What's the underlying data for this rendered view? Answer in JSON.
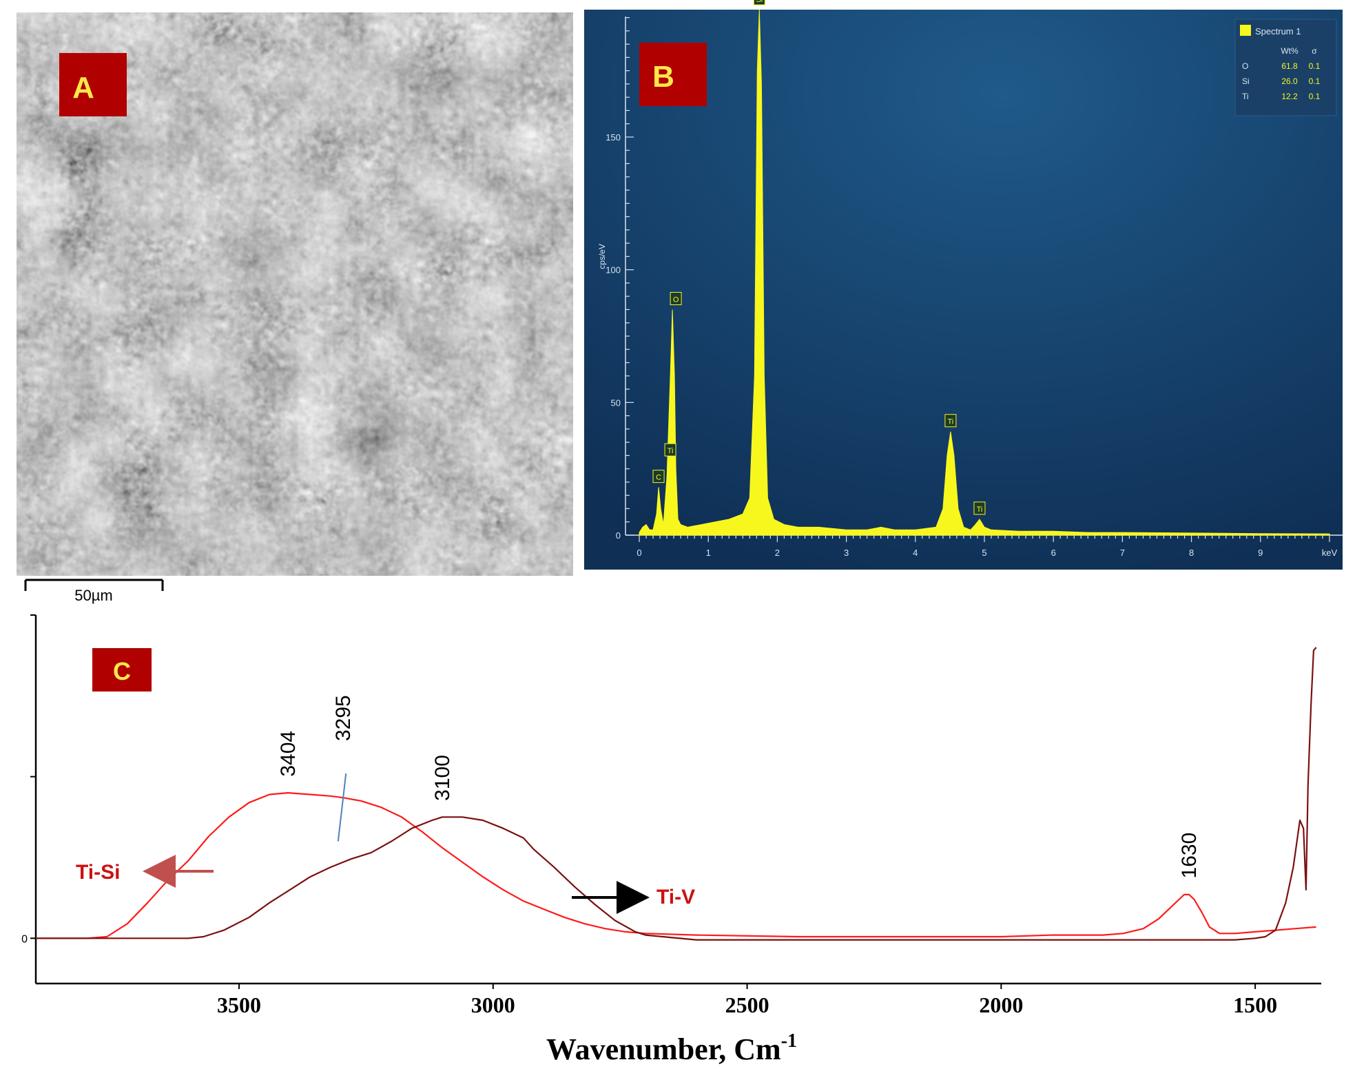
{
  "panel_a": {
    "label": "A",
    "scale_bar_label": "50µm"
  },
  "panel_b": {
    "label": "B",
    "colors": {
      "background": "#123a63",
      "spectrum": "#f7f71e",
      "label_box": "#b00000",
      "label_text": "#ffe84a"
    },
    "chart_data": {
      "type": "area",
      "title": "",
      "xlabel": "keV",
      "ylabel": "cps/eV",
      "xlim": [
        -0.05,
        10.2
      ],
      "ylim": [
        0,
        198
      ],
      "x_ticks": [
        0,
        1,
        2,
        3,
        4,
        5,
        6,
        7,
        8,
        9
      ],
      "x_tick_labels": [
        "0",
        "1",
        "2",
        "3",
        "4",
        "5",
        "6",
        "7",
        "8",
        "9"
      ],
      "y_ticks": [
        0,
        50,
        100,
        150
      ],
      "y_tick_labels": [
        "0",
        "50",
        "100",
        "150"
      ],
      "series": [
        {
          "name": "Spectrum 1",
          "x": [
            0.0,
            0.05,
            0.1,
            0.15,
            0.2,
            0.25,
            0.28,
            0.31,
            0.35,
            0.4,
            0.45,
            0.48,
            0.51,
            0.53,
            0.56,
            0.6,
            0.7,
            0.9,
            1.1,
            1.3,
            1.5,
            1.6,
            1.67,
            1.71,
            1.74,
            1.77,
            1.81,
            1.86,
            1.95,
            2.1,
            2.3,
            2.6,
            3.0,
            3.3,
            3.5,
            3.7,
            4.0,
            4.3,
            4.4,
            4.46,
            4.51,
            4.56,
            4.62,
            4.7,
            4.8,
            4.87,
            4.93,
            5.0,
            5.1,
            5.5,
            6.0,
            6.5,
            7.0,
            8.0,
            9.0,
            10.0
          ],
          "y": [
            1,
            3,
            4,
            2,
            2,
            8,
            18,
            10,
            4,
            22,
            60,
            85,
            60,
            25,
            6,
            4,
            3,
            4,
            5,
            6,
            8,
            14,
            60,
            175,
            198,
            170,
            60,
            14,
            6,
            4,
            3,
            3,
            2,
            2,
            3,
            2,
            2,
            3,
            10,
            30,
            39,
            30,
            10,
            3,
            2,
            4,
            6,
            3,
            2,
            1.5,
            1.5,
            1,
            1,
            0.8,
            0.6,
            0.5
          ]
        }
      ],
      "peak_labels": [
        {
          "text": "C",
          "x": 0.28,
          "y": 18
        },
        {
          "text": "Ti",
          "x": 0.45,
          "y": 28
        },
        {
          "text": "O",
          "x": 0.53,
          "y": 85
        },
        {
          "text": "Si",
          "x": 1.74,
          "y": 198
        },
        {
          "text": "Ti",
          "x": 4.51,
          "y": 39
        },
        {
          "text": "Ti",
          "x": 4.93,
          "y": 6
        }
      ],
      "legend": {
        "position": "top-right",
        "title": "Spectrum 1",
        "headers": [
          "Wt%",
          "σ"
        ],
        "rows": [
          {
            "element": "O",
            "wt": "61.8",
            "sigma": "0.1"
          },
          {
            "element": "Si",
            "wt": "26.0",
            "sigma": "0.1"
          },
          {
            "element": "Ti",
            "wt": "12.2",
            "sigma": "0.1"
          }
        ]
      }
    }
  },
  "panel_c": {
    "label": "C",
    "colors": {
      "ti_si": "#ff1a1a",
      "ti_v": "#7a1010",
      "label_text": "#cc1111",
      "arrow_ti_si": "#c0504d",
      "arrow_ti_v": "#000000",
      "label_box": "#b00000",
      "label_letter": "#ffe84a"
    },
    "chart_data": {
      "type": "line",
      "title": "",
      "xlabel": "Wavenumber, Cm",
      "xlabel_superscript": "-1",
      "ylabel": "",
      "xlim": [
        3900,
        1370
      ],
      "ylim": [
        -0.28,
        2.0
      ],
      "x_ticks": [
        3500,
        3000,
        2500,
        2000,
        1500
      ],
      "x_tick_labels": [
        "3500",
        "3000",
        "2500",
        "2000",
        "1500"
      ],
      "y_ticks": [
        0,
        1,
        2
      ],
      "y_tick_labels": [
        "0",
        "",
        ""
      ],
      "series": [
        {
          "name": "Ti-Si",
          "x": [
            3900,
            3800,
            3760,
            3720,
            3680,
            3640,
            3600,
            3560,
            3520,
            3480,
            3440,
            3404,
            3360,
            3320,
            3295,
            3260,
            3220,
            3180,
            3140,
            3100,
            3060,
            3020,
            2980,
            2940,
            2900,
            2860,
            2820,
            2780,
            2740,
            2700,
            2600,
            2400,
            2200,
            2000,
            1900,
            1800,
            1760,
            1720,
            1690,
            1670,
            1650,
            1640,
            1630,
            1620,
            1605,
            1590,
            1570,
            1540,
            1500,
            1460,
            1420,
            1380
          ],
          "y": [
            0,
            0,
            0.01,
            0.09,
            0.22,
            0.36,
            0.48,
            0.63,
            0.75,
            0.84,
            0.89,
            0.9,
            0.89,
            0.88,
            0.87,
            0.85,
            0.81,
            0.75,
            0.66,
            0.56,
            0.47,
            0.38,
            0.3,
            0.23,
            0.18,
            0.13,
            0.09,
            0.06,
            0.04,
            0.03,
            0.02,
            0.01,
            0.01,
            0.01,
            0.02,
            0.02,
            0.03,
            0.06,
            0.12,
            0.18,
            0.24,
            0.27,
            0.27,
            0.24,
            0.16,
            0.07,
            0.03,
            0.03,
            0.04,
            0.05,
            0.06,
            0.07
          ]
        },
        {
          "name": "Ti-V",
          "x": [
            3900,
            3600,
            3570,
            3530,
            3480,
            3440,
            3400,
            3360,
            3320,
            3280,
            3240,
            3200,
            3160,
            3120,
            3100,
            3060,
            3020,
            2980,
            2940,
            2920,
            2880,
            2840,
            2800,
            2760,
            2720,
            2700,
            2600,
            2400,
            2200,
            2000,
            1800,
            1600,
            1540,
            1500,
            1480,
            1460,
            1440,
            1425,
            1412,
            1405,
            1400,
            1396,
            1390,
            1385,
            1380
          ],
          "y": [
            0,
            0,
            0.01,
            0.05,
            0.13,
            0.22,
            0.3,
            0.38,
            0.44,
            0.49,
            0.53,
            0.6,
            0.68,
            0.73,
            0.75,
            0.75,
            0.73,
            0.68,
            0.62,
            0.55,
            0.44,
            0.32,
            0.21,
            0.11,
            0.04,
            0.02,
            -0.01,
            -0.01,
            -0.01,
            -0.01,
            -0.01,
            -0.01,
            -0.01,
            0.0,
            0.01,
            0.05,
            0.22,
            0.44,
            0.73,
            0.68,
            0.3,
            0.95,
            1.45,
            1.78,
            1.8
          ]
        }
      ],
      "annotations": [
        {
          "text": "3404",
          "x": 3404
        },
        {
          "text": "3295",
          "x": 3295
        },
        {
          "text": "3100",
          "x": 3100
        },
        {
          "text": "1630",
          "x": 1630
        }
      ],
      "legend": [
        {
          "text": "Ti-Si",
          "arrow": "left"
        },
        {
          "text": "Ti-V",
          "arrow": "right"
        }
      ]
    }
  }
}
